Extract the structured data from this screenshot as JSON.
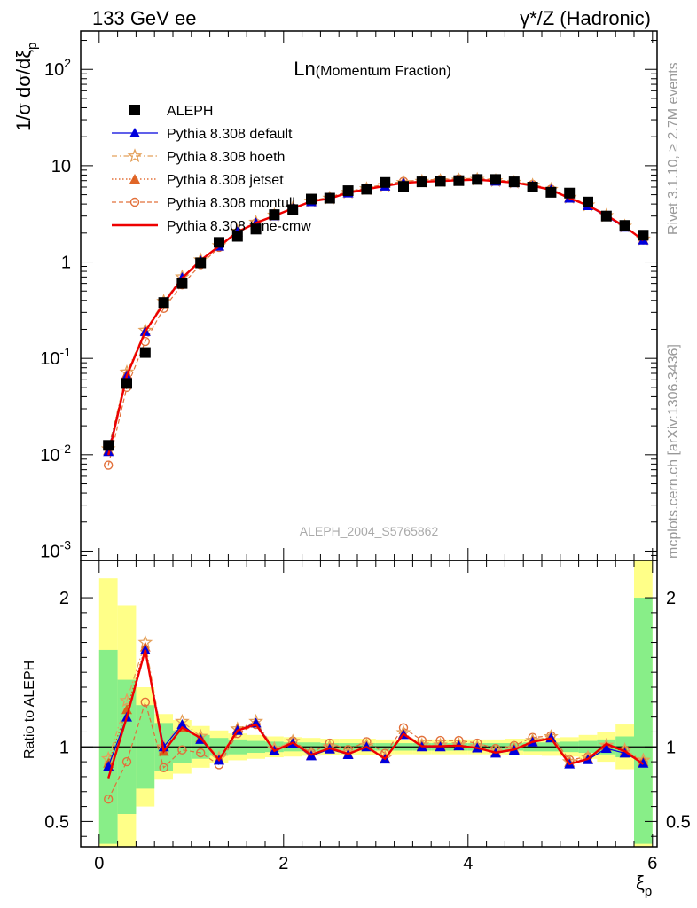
{
  "header": {
    "left": "133 GeV ee",
    "right": "γ*/Z (Hadronic)"
  },
  "side_labels": {
    "rivet": "Rivet 3.1.10, ≥ 2.7M events",
    "mcplots": "mcplots.cern.ch [arXiv:1306.3436]"
  },
  "chart_data": {
    "type": "line",
    "title_main": "Ln",
    "title_sub": "(Momentum Fraction)",
    "watermark": "ALEPH_2004_S5765862",
    "xlabel": "ξ",
    "xlabel_sub": "p",
    "ylabel": "1/σ dσ/dξ",
    "ylabel_sub": "p",
    "ratio_ylabel": "Ratio to ALEPH",
    "xlim": [
      -0.2,
      6.05
    ],
    "ylim": [
      0.0008,
      250
    ],
    "ratio_ylim": [
      0.33,
      2.25
    ],
    "yscale": "log",
    "x_ticks": [
      "0",
      "2",
      "4",
      "6"
    ],
    "y_ticks": [
      {
        "base": "10",
        "exp": "-3"
      },
      {
        "base": "10",
        "exp": "-2"
      },
      {
        "base": "10",
        "exp": "-1"
      },
      {
        "base": "1",
        "exp": ""
      },
      {
        "base": "10",
        "exp": ""
      },
      {
        "base": "10",
        "exp": "2"
      }
    ],
    "ratio_ticks": [
      "0.5",
      "1",
      "2"
    ],
    "x": [
      0.1,
      0.3,
      0.5,
      0.7,
      0.9,
      1.1,
      1.3,
      1.5,
      1.7,
      1.9,
      2.1,
      2.3,
      2.5,
      2.7,
      2.9,
      3.1,
      3.3,
      3.5,
      3.7,
      3.9,
      4.1,
      4.3,
      4.5,
      4.7,
      4.9,
      5.1,
      5.3,
      5.5,
      5.7,
      5.9
    ],
    "band_edges": [
      0,
      0.2,
      0.4,
      0.6,
      0.8,
      1.0,
      1.2,
      1.4,
      1.6,
      1.8,
      2.0,
      2.2,
      2.4,
      2.6,
      2.8,
      3.0,
      3.2,
      3.4,
      3.6,
      3.8,
      4.0,
      4.2,
      4.4,
      4.6,
      4.8,
      5.0,
      5.2,
      5.4,
      5.6,
      5.8,
      6.0
    ],
    "band_inner": [
      [
        0.35,
        1.65
      ],
      [
        0.55,
        1.45
      ],
      [
        0.72,
        1.28
      ],
      [
        0.84,
        1.16
      ],
      [
        0.89,
        1.11
      ],
      [
        0.92,
        1.08
      ],
      [
        0.94,
        1.06
      ],
      [
        0.95,
        1.05
      ],
      [
        0.96,
        1.04
      ],
      [
        0.965,
        1.035
      ],
      [
        0.97,
        1.03
      ],
      [
        0.97,
        1.03
      ],
      [
        0.975,
        1.025
      ],
      [
        0.975,
        1.025
      ],
      [
        0.975,
        1.025
      ],
      [
        0.975,
        1.025
      ],
      [
        0.975,
        1.025
      ],
      [
        0.975,
        1.025
      ],
      [
        0.975,
        1.025
      ],
      [
        0.975,
        1.025
      ],
      [
        0.975,
        1.025
      ],
      [
        0.975,
        1.025
      ],
      [
        0.975,
        1.025
      ],
      [
        0.97,
        1.03
      ],
      [
        0.97,
        1.03
      ],
      [
        0.965,
        1.035
      ],
      [
        0.96,
        1.04
      ],
      [
        0.95,
        1.05
      ],
      [
        0.93,
        1.07
      ],
      [
        0.35,
        2.0
      ]
    ],
    "band_outer": [
      [
        0.33,
        2.13
      ],
      [
        0.33,
        1.95
      ],
      [
        0.6,
        1.4
      ],
      [
        0.78,
        1.22
      ],
      [
        0.82,
        1.18
      ],
      [
        0.86,
        1.14
      ],
      [
        0.89,
        1.11
      ],
      [
        0.91,
        1.09
      ],
      [
        0.92,
        1.08
      ],
      [
        0.93,
        1.07
      ],
      [
        0.935,
        1.065
      ],
      [
        0.94,
        1.06
      ],
      [
        0.945,
        1.055
      ],
      [
        0.945,
        1.055
      ],
      [
        0.945,
        1.055
      ],
      [
        0.95,
        1.05
      ],
      [
        0.95,
        1.05
      ],
      [
        0.95,
        1.05
      ],
      [
        0.95,
        1.05
      ],
      [
        0.95,
        1.05
      ],
      [
        0.95,
        1.05
      ],
      [
        0.95,
        1.05
      ],
      [
        0.945,
        1.055
      ],
      [
        0.945,
        1.055
      ],
      [
        0.94,
        1.06
      ],
      [
        0.935,
        1.065
      ],
      [
        0.92,
        1.08
      ],
      [
        0.9,
        1.1
      ],
      [
        0.85,
        1.15
      ],
      [
        0.33,
        2.25
      ]
    ],
    "series": [
      {
        "name": "ALEPH",
        "style": "data",
        "color": "#000000",
        "values": [
          0.0125,
          0.055,
          0.115,
          0.38,
          0.6,
          0.98,
          1.6,
          1.85,
          2.2,
          3.1,
          3.5,
          4.5,
          4.6,
          5.5,
          5.7,
          6.7,
          6.1,
          6.8,
          6.9,
          7.0,
          7.2,
          7.2,
          6.8,
          6.0,
          5.3,
          5.2,
          4.2,
          3.0,
          2.4,
          1.9
        ]
      },
      {
        "name": "Pythia 8.308 default",
        "style": "triangle",
        "color": "#0000dd",
        "values": [
          0.0108,
          0.066,
          0.19,
          0.38,
          0.69,
          1.03,
          1.46,
          2.06,
          2.55,
          3.02,
          3.59,
          4.23,
          4.54,
          5.21,
          5.7,
          6.15,
          6.61,
          6.8,
          6.9,
          7.05,
          7.15,
          6.9,
          6.65,
          6.2,
          5.62,
          4.6,
          3.84,
          2.97,
          2.3,
          1.69
        ],
        "ratio": [
          0.87,
          1.2,
          1.65,
          1.0,
          1.15,
          1.05,
          0.91,
          1.11,
          1.16,
          0.975,
          1.025,
          0.94,
          0.985,
          0.948,
          1.0,
          0.918,
          1.083,
          1.0,
          1.0,
          1.007,
          0.993,
          0.958,
          0.978,
          1.033,
          1.06,
          0.885,
          0.914,
          0.99,
          0.958,
          0.89
        ]
      },
      {
        "name": "Pythia 8.308 hoeth",
        "style": "star",
        "color": "#e4a05a",
        "values": [
          0.0115,
          0.072,
          0.195,
          0.39,
          0.7,
          1.05,
          1.48,
          2.08,
          2.58,
          3.06,
          3.63,
          4.28,
          4.6,
          5.28,
          5.75,
          6.22,
          6.68,
          6.88,
          6.98,
          7.1,
          7.2,
          6.98,
          6.72,
          6.26,
          5.66,
          4.68,
          3.9,
          3.03,
          2.35,
          1.73
        ],
        "ratio": [
          0.92,
          1.31,
          1.7,
          1.0,
          1.17,
          1.07,
          0.925,
          1.12,
          1.17,
          0.987,
          1.037,
          0.951,
          1.0,
          0.96,
          1.009,
          0.928,
          1.095,
          1.012,
          1.012,
          1.014,
          1.0,
          0.969,
          0.988,
          1.043,
          1.068,
          0.9,
          0.929,
          1.01,
          0.979,
          0.91
        ]
      },
      {
        "name": "Pythia 8.308 jetset",
        "style": "triangle-o",
        "color": "#dd5511",
        "values": [
          0.0111,
          0.069,
          0.192,
          0.37,
          0.68,
          1.04,
          1.47,
          2.07,
          2.56,
          3.03,
          3.6,
          4.25,
          4.56,
          5.24,
          5.72,
          6.18,
          6.64,
          6.84,
          6.94,
          7.08,
          7.17,
          6.95,
          6.7,
          6.24,
          5.64,
          4.66,
          3.87,
          3.0,
          2.33,
          1.71
        ],
        "ratio": [
          0.89,
          1.25,
          1.67,
          0.97,
          1.13,
          1.06,
          0.918,
          1.12,
          1.16,
          0.978,
          1.028,
          0.944,
          0.991,
          0.953,
          1.004,
          0.922,
          1.088,
          1.006,
          1.006,
          1.011,
          0.996,
          0.965,
          0.985,
          1.04,
          1.064,
          0.896,
          0.921,
          1.0,
          0.971,
          0.9
        ]
      },
      {
        "name": "Pythia 8.308 montull",
        "style": "circle",
        "color": "#e2703a",
        "values": [
          0.0078,
          0.05,
          0.15,
          0.33,
          0.58,
          0.94,
          1.42,
          2.02,
          2.54,
          3.04,
          3.64,
          4.32,
          4.72,
          5.4,
          5.9,
          6.41,
          6.88,
          7.1,
          7.2,
          7.3,
          7.38,
          7.12,
          6.86,
          6.38,
          5.7,
          4.75,
          3.92,
          3.0,
          2.35,
          1.7
        ],
        "ratio": [
          0.65,
          0.9,
          1.3,
          0.86,
          0.98,
          0.96,
          0.88,
          1.09,
          1.15,
          0.98,
          1.04,
          0.96,
          1.025,
          0.982,
          1.035,
          0.957,
          1.128,
          1.044,
          1.043,
          1.043,
          1.025,
          0.989,
          1.009,
          1.063,
          1.075,
          0.913,
          0.933,
          1.0,
          0.979,
          0.895
        ]
      },
      {
        "name": "Pythia 8.308 tune-cmw",
        "style": "solid",
        "color": "#ee0000",
        "values": [
          0.0099,
          0.066,
          0.19,
          0.37,
          0.68,
          1.04,
          1.46,
          2.05,
          2.54,
          3.02,
          3.6,
          4.26,
          4.56,
          5.24,
          5.7,
          6.17,
          6.63,
          6.83,
          6.93,
          7.06,
          7.15,
          6.92,
          6.68,
          6.2,
          5.6,
          4.6,
          3.86,
          3.06,
          2.33,
          1.68
        ],
        "ratio": [
          0.79,
          1.2,
          1.65,
          0.97,
          1.13,
          1.06,
          0.912,
          1.11,
          1.15,
          0.973,
          1.028,
          0.947,
          0.991,
          0.953,
          1.0,
          0.921,
          1.087,
          1.004,
          1.004,
          1.009,
          0.993,
          0.961,
          0.982,
          1.033,
          1.057,
          0.885,
          0.919,
          1.02,
          0.971,
          0.884
        ]
      }
    ]
  }
}
